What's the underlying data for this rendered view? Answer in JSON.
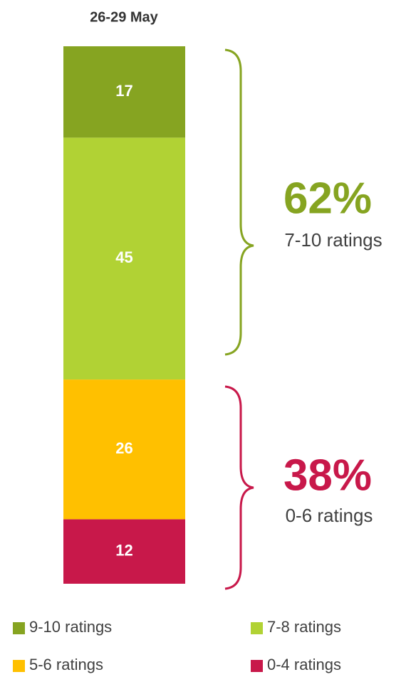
{
  "chart_data": {
    "type": "stacked-bar",
    "title": "26-29 May",
    "series": [
      {
        "name": "9-10 ratings",
        "color": "#86a421",
        "values": [
          17
        ]
      },
      {
        "name": "7-8 ratings",
        "color": "#b1d234",
        "values": [
          45
        ]
      },
      {
        "name": "5-6 ratings",
        "color": "#ffc000",
        "values": [
          26
        ]
      },
      {
        "name": "0-4 ratings",
        "color": "#c8184a",
        "values": [
          12
        ]
      }
    ],
    "annotations": [
      {
        "text": "62%",
        "subtext": "7-10 ratings",
        "color": "#86a421"
      },
      {
        "text": "38%",
        "subtext": "0-6 ratings",
        "color": "#c8184a"
      }
    ]
  }
}
